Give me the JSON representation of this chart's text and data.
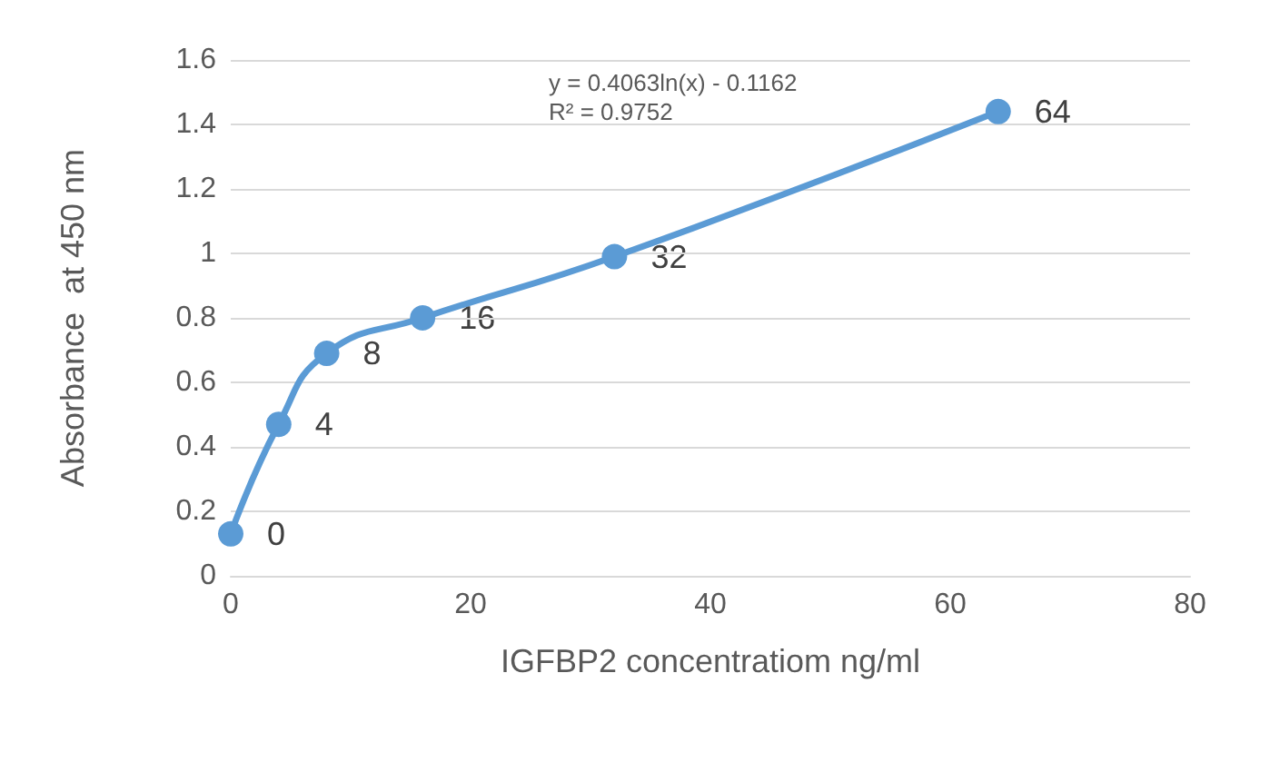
{
  "chart_data": {
    "type": "line",
    "xlabel": "IGFBP2 concentratiom ng/ml",
    "ylabel": "Absorbance  at 450 nm",
    "x": [
      0,
      4,
      8,
      16,
      32,
      64
    ],
    "series": [
      {
        "color": "#5b9bd5",
        "values": [
          0.13,
          0.47,
          0.69,
          0.8,
          0.99,
          1.44
        ]
      }
    ],
    "xlim": [
      0,
      80
    ],
    "xticks": [
      0,
      20,
      40,
      60,
      80
    ],
    "ylim": [
      0,
      1.6
    ],
    "yticks": [
      0,
      0.2,
      0.4,
      0.6,
      0.8,
      1,
      1.2,
      1.4,
      1.6
    ],
    "grid": "y",
    "marker": "circle",
    "line_style": "solid",
    "annotations": [
      "y = 0.4063ln(x) - 0.1162",
      "R² = 0.9752",
      {
        "text": "0",
        "x": 0,
        "y": 0.13
      },
      {
        "text": "4",
        "x": 4,
        "y": 0.47
      },
      {
        "text": "8",
        "x": 8,
        "y": 0.69
      },
      {
        "text": "16",
        "x": 16,
        "y": 0.8
      },
      {
        "text": "32",
        "x": 32,
        "y": 0.99
      },
      {
        "text": "64",
        "x": 64,
        "y": 1.44
      }
    ]
  }
}
